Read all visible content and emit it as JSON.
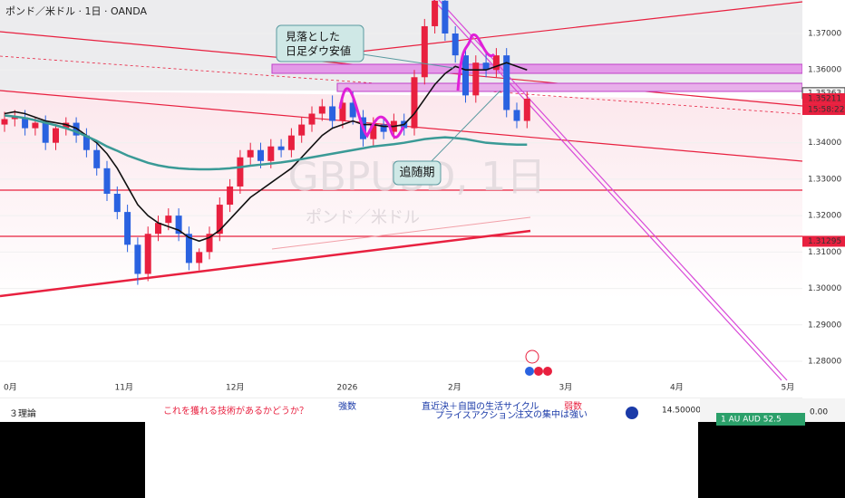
{
  "chart_data": {
    "type": "candlestick",
    "title": "ポンド／米ドル · 1日 · OANDA",
    "watermark": "GBPUSD, 1日",
    "watermark_sub": "ポンド／米ドル",
    "ylim": [
      1.2723,
      1.3792
    ],
    "yticks": [
      {
        "value": 1.37,
        "label": "1.37000"
      },
      {
        "value": 1.36,
        "label": "1.36000"
      },
      {
        "value": 1.34,
        "label": "1.34000"
      },
      {
        "value": 1.33,
        "label": "1.33000"
      },
      {
        "value": 1.32,
        "label": "1.32000"
      },
      {
        "value": 1.31,
        "label": "1.31000"
      },
      {
        "value": 1.3,
        "label": "1.30000"
      },
      {
        "value": 1.29,
        "label": "1.29000"
      },
      {
        "value": 1.28,
        "label": "1.28000"
      }
    ],
    "time_labels": [
      "0月",
      "11月",
      "12月",
      "2026",
      "2月",
      "3月",
      "4月",
      "5月"
    ],
    "up_color": "#e8203f",
    "down_color": "#2a62e0",
    "open": [
      1.345,
      1.3465,
      1.347,
      1.344,
      1.3455,
      1.34,
      1.344,
      1.3455,
      1.342,
      1.338,
      1.333,
      1.326,
      1.321,
      1.312,
      1.304,
      1.315,
      1.318,
      1.32,
      1.315,
      1.307,
      1.31,
      1.315,
      1.323,
      1.328,
      1.336,
      1.338,
      1.335,
      1.339,
      1.338,
      1.342,
      1.345,
      1.348,
      1.35,
      1.346,
      1.351,
      1.347,
      1.341,
      1.345,
      1.343,
      1.346,
      1.344,
      1.358,
      1.372,
      1.379,
      1.37,
      1.364,
      1.353,
      1.362,
      1.36,
      1.364,
      1.349,
      1.346
    ],
    "high": [
      1.3485,
      1.349,
      1.349,
      1.347,
      1.3475,
      1.345,
      1.347,
      1.347,
      1.344,
      1.34,
      1.335,
      1.328,
      1.323,
      1.314,
      1.317,
      1.32,
      1.322,
      1.322,
      1.317,
      1.311,
      1.317,
      1.325,
      1.33,
      1.338,
      1.34,
      1.34,
      1.341,
      1.341,
      1.344,
      1.347,
      1.35,
      1.352,
      1.353,
      1.353,
      1.354,
      1.349,
      1.347,
      1.347,
      1.348,
      1.348,
      1.36,
      1.374,
      1.3792,
      1.3792,
      1.372,
      1.366,
      1.364,
      1.365,
      1.366,
      1.366,
      1.351,
      1.354
    ],
    "low": [
      1.343,
      1.3445,
      1.342,
      1.342,
      1.338,
      1.338,
      1.342,
      1.34,
      1.336,
      1.331,
      1.324,
      1.319,
      1.31,
      1.301,
      1.302,
      1.313,
      1.316,
      1.313,
      1.305,
      1.305,
      1.308,
      1.313,
      1.321,
      1.326,
      1.334,
      1.333,
      1.333,
      1.336,
      1.336,
      1.34,
      1.343,
      1.346,
      1.344,
      1.344,
      1.345,
      1.339,
      1.339,
      1.341,
      1.341,
      1.342,
      1.342,
      1.356,
      1.37,
      1.368,
      1.362,
      1.351,
      1.351,
      1.358,
      1.358,
      1.347,
      1.344,
      1.344
    ],
    "close": [
      1.3465,
      1.347,
      1.344,
      1.3455,
      1.34,
      1.344,
      1.3455,
      1.342,
      1.338,
      1.333,
      1.326,
      1.321,
      1.312,
      1.304,
      1.315,
      1.318,
      1.32,
      1.315,
      1.307,
      1.31,
      1.315,
      1.323,
      1.328,
      1.336,
      1.338,
      1.335,
      1.339,
      1.338,
      1.342,
      1.345,
      1.348,
      1.35,
      1.346,
      1.351,
      1.347,
      1.341,
      1.345,
      1.343,
      1.346,
      1.344,
      1.358,
      1.372,
      1.379,
      1.37,
      1.364,
      1.353,
      1.362,
      1.36,
      1.364,
      1.349,
      1.346,
      1.3521
    ],
    "lines": [
      {
        "color": "#111111",
        "values": [
          1.348,
          1.3485,
          1.348,
          1.347,
          1.346,
          1.3455,
          1.345,
          1.344,
          1.342,
          1.34,
          1.337,
          1.333,
          1.328,
          1.323,
          1.32,
          1.318,
          1.317,
          1.316,
          1.314,
          1.313,
          1.314,
          1.316,
          1.319,
          1.322,
          1.325,
          1.327,
          1.329,
          1.331,
          1.333,
          1.336,
          1.339,
          1.342,
          1.344,
          1.345,
          1.346,
          1.345,
          1.345,
          1.3445,
          1.3445,
          1.345,
          1.348,
          1.352,
          1.356,
          1.359,
          1.361,
          1.36,
          1.36,
          1.36,
          1.361,
          1.362,
          1.361,
          1.36
        ]
      },
      {
        "color": "#3a9a96",
        "values": [
          1.3475,
          1.3472,
          1.3468,
          1.3462,
          1.3455,
          1.3448,
          1.344,
          1.343,
          1.3418,
          1.3405,
          1.339,
          1.3378,
          1.3365,
          1.3355,
          1.3345,
          1.3338,
          1.3333,
          1.333,
          1.3328,
          1.3327,
          1.3327,
          1.3328,
          1.333,
          1.3333,
          1.3337,
          1.334,
          1.3343,
          1.3346,
          1.335,
          1.3355,
          1.336,
          1.3365,
          1.337,
          1.3375,
          1.338,
          1.3385,
          1.339,
          1.3393,
          1.3396,
          1.34,
          1.3405,
          1.341,
          1.3413,
          1.3415,
          1.3413,
          1.341,
          1.3405,
          1.34,
          1.3398,
          1.3396,
          1.3395,
          1.3395
        ]
      }
    ],
    "price_badges": [
      {
        "value": 1.35363,
        "label": "1.35363"
      },
      {
        "value": 1.35211,
        "label": "1.35211"
      },
      {
        "value": 1.31295,
        "label": "1.31295"
      }
    ],
    "countdown": "15:58:22",
    "annotations": [
      "見落とした",
      "日足ダウ安値",
      "追随期"
    ]
  },
  "bottom_panel": {
    "texts": [
      "３理論",
      "これを獲れる技術があるかどうか？",
      "強数",
      "直近決＋自国の生活サイクル",
      "プライスアクション",
      "注文の集中は強い",
      "弱数",
      "14.50000",
      "0.00",
      "1  AU   AUD   52.5"
    ]
  }
}
